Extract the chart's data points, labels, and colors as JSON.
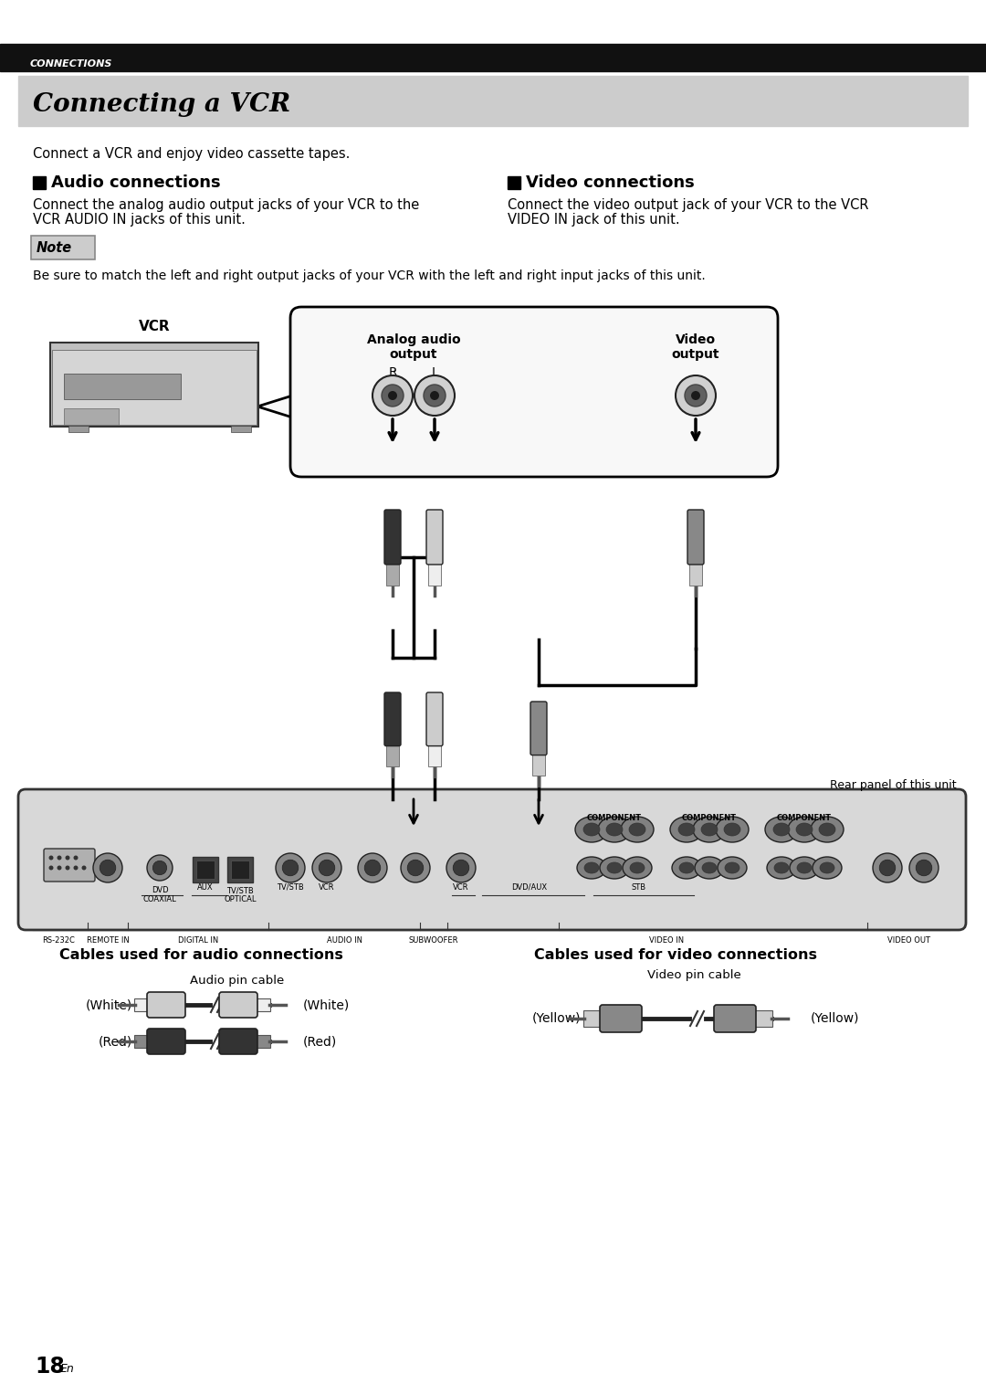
{
  "page_bg": "#ffffff",
  "header_bg": "#111111",
  "header_text": "CONNECTIONS",
  "header_text_color": "#ffffff",
  "title_bg": "#cccccc",
  "title_text": "Connecting a VCR",
  "intro_text": "Connect a VCR and enjoy video cassette tapes.",
  "audio_heading": "Audio connections",
  "audio_body1": "Connect the analog audio output jacks of your VCR to the",
  "audio_body2": "VCR AUDIO IN jacks of this unit.",
  "video_heading": "Video connections",
  "video_body1": "Connect the video output jack of your VCR to the VCR",
  "video_body2": "VIDEO IN jack of this unit.",
  "note_label": "Note",
  "note_text": "Be sure to match the left and right output jacks of your VCR with the left and right input jacks of this unit.",
  "vcr_label": "VCR",
  "analog_audio_label1": "Analog audio",
  "analog_audio_label2": "output",
  "r_label": "R",
  "l_label": "L",
  "video_output_label1": "Video",
  "video_output_label2": "output",
  "rear_panel_label": "Rear panel of this unit",
  "cables_audio_label": "Cables used for audio connections",
  "cables_video_label": "Cables used for video connections",
  "audio_cable_label": "Audio pin cable",
  "video_cable_label": "Video pin cable",
  "white_label": "(White)",
  "red_label": "(Red)",
  "yellow_label": "(Yellow)",
  "page_num": "18",
  "page_en": "En",
  "section_labels_bottom": [
    "RS-232C",
    "REMOTE IN",
    "DIGITAL IN",
    "AUDIO IN",
    "SUBWOOFER",
    "VIDEO IN",
    "VIDEO OUT"
  ],
  "jack_sub_labels": [
    "DVD\nCOAXIAL",
    "AUX",
    "TV/STB\nOPTICAL",
    "TV/STB",
    "VCR",
    "VCR",
    "DVD/AUX",
    "STB"
  ]
}
